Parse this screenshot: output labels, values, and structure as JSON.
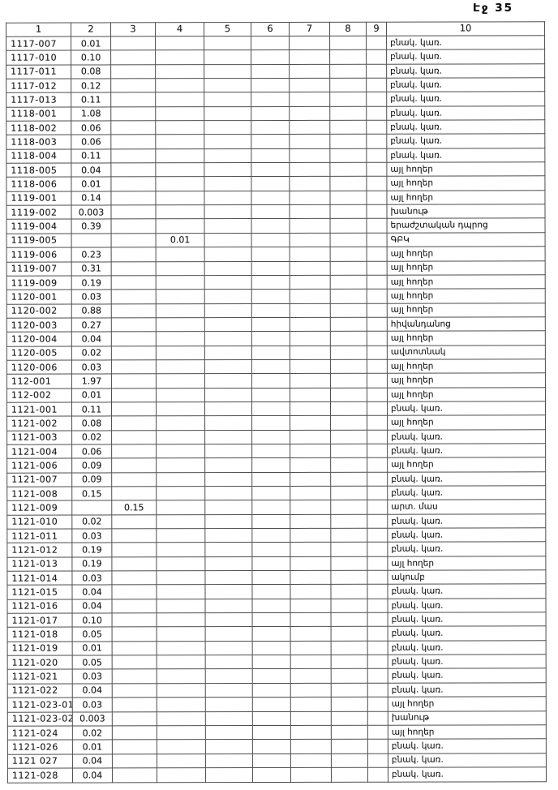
{
  "page": {
    "label": "Էջ 35"
  },
  "table": {
    "headers": [
      "1",
      "2",
      "3",
      "4",
      "5",
      "6",
      "7",
      "8",
      "9",
      "10"
    ],
    "note_legend_examples": [
      "բնակ. կառ.",
      "այլ հողեր",
      "խանութ",
      "ԳԲԿ"
    ],
    "rows": [
      {
        "code": "1117-007",
        "c2": "0.01",
        "c3": "",
        "c4": "",
        "c10": "բնակ. կառ."
      },
      {
        "code": "1117-010",
        "c2": "0.10",
        "c3": "",
        "c4": "",
        "c10": "բնակ. կառ."
      },
      {
        "code": "1117-011",
        "c2": "0.08",
        "c3": "",
        "c4": "",
        "c10": "բնակ. կառ."
      },
      {
        "code": "1117-012",
        "c2": "0.12",
        "c3": "",
        "c4": "",
        "c10": "բնակ. կառ."
      },
      {
        "code": "1117-013",
        "c2": "0.11",
        "c3": "",
        "c4": "",
        "c10": "բնակ. կառ."
      },
      {
        "code": "1118-001",
        "c2": "1.08",
        "c3": "",
        "c4": "",
        "c10": "բնակ. կառ."
      },
      {
        "code": "1118-002",
        "c2": "0.06",
        "c3": "",
        "c4": "",
        "c10": "բնակ. կառ."
      },
      {
        "code": "1118-003",
        "c2": "0.06",
        "c3": "",
        "c4": "",
        "c10": "բնակ. կառ."
      },
      {
        "code": "1118-004",
        "c2": "0.11",
        "c3": "",
        "c4": "",
        "c10": "բնակ. կառ."
      },
      {
        "code": "1118-005",
        "c2": "0.04",
        "c3": "",
        "c4": "",
        "c10": "այլ հողեր"
      },
      {
        "code": "1118-006",
        "c2": "0.01",
        "c3": "",
        "c4": "",
        "c10": "այլ հողեր"
      },
      {
        "code": "1119-001",
        "c2": "0.14",
        "c3": "",
        "c4": "",
        "c10": "այլ հողեր"
      },
      {
        "code": "1119-002",
        "c2": "0.003",
        "c3": "",
        "c4": "",
        "c10": "խանութ"
      },
      {
        "code": "1119-004",
        "c2": "0.39",
        "c3": "",
        "c4": "",
        "c10": "երաժշտական դպրոց"
      },
      {
        "code": "1119-005",
        "c2": "",
        "c3": "",
        "c4": "0.01",
        "c10": "ԳԲԿ"
      },
      {
        "code": "1119-006",
        "c2": "0.23",
        "c3": "",
        "c4": "",
        "c10": "այլ հողեր"
      },
      {
        "code": "1119-007",
        "c2": "0.31",
        "c3": "",
        "c4": "",
        "c10": "այլ հողեր"
      },
      {
        "code": "1119-009",
        "c2": "0.19",
        "c3": "",
        "c4": "",
        "c10": "այլ հողեր"
      },
      {
        "code": "1120-001",
        "c2": "0.03",
        "c3": "",
        "c4": "",
        "c10": "այլ հողեր"
      },
      {
        "code": "1120-002",
        "c2": "0.88",
        "c3": "",
        "c4": "",
        "c10": "այլ հողեր"
      },
      {
        "code": "1120-003",
        "c2": "0.27",
        "c3": "",
        "c4": "",
        "c10": "հիվանդանոց"
      },
      {
        "code": "1120-004",
        "c2": "0.04",
        "c3": "",
        "c4": "",
        "c10": "այլ հողեր"
      },
      {
        "code": "1120-005",
        "c2": "0.02",
        "c3": "",
        "c4": "",
        "c10": "ավտոտնակ"
      },
      {
        "code": "1120-006",
        "c2": "0.03",
        "c3": "",
        "c4": "",
        "c10": "այլ հողեր"
      },
      {
        "code": "112-001",
        "c2": "1.97",
        "c3": "",
        "c4": "",
        "c10": "այլ հողեր"
      },
      {
        "code": "112-002",
        "c2": "0.01",
        "c3": "",
        "c4": "",
        "c10": "այլ հողեր"
      },
      {
        "code": "1121-001",
        "c2": "0.11",
        "c3": "",
        "c4": "",
        "c10": "բնակ. կառ."
      },
      {
        "code": "1121-002",
        "c2": "0.08",
        "c3": "",
        "c4": "",
        "c10": "այլ հողեր"
      },
      {
        "code": "1121-003",
        "c2": "0.02",
        "c3": "",
        "c4": "",
        "c10": "բնակ. կառ."
      },
      {
        "code": "1121-004",
        "c2": "0.06",
        "c3": "",
        "c4": "",
        "c10": "բնակ. կառ."
      },
      {
        "code": "1121-006",
        "c2": "0.09",
        "c3": "",
        "c4": "",
        "c10": "այլ հողեր"
      },
      {
        "code": "1121-007",
        "c2": "0.09",
        "c3": "",
        "c4": "",
        "c10": "բնակ. կառ."
      },
      {
        "code": "1121-008",
        "c2": "0.15",
        "c3": "",
        "c4": "",
        "c10": "բնակ. կառ."
      },
      {
        "code": "1121-009",
        "c2": "",
        "c3": "0.15",
        "c4": "",
        "c10": "արտ. մաս"
      },
      {
        "code": "1121-010",
        "c2": "0.02",
        "c3": "",
        "c4": "",
        "c10": "բնակ. կառ."
      },
      {
        "code": "1121-011",
        "c2": "0.03",
        "c3": "",
        "c4": "",
        "c10": "բնակ. կառ."
      },
      {
        "code": "1121-012",
        "c2": "0.19",
        "c3": "",
        "c4": "",
        "c10": "բնակ. կառ."
      },
      {
        "code": "1121-013",
        "c2": "0.19",
        "c3": "",
        "c4": "",
        "c10": "այլ հողեր"
      },
      {
        "code": "1121-014",
        "c2": "0.03",
        "c3": "",
        "c4": "",
        "c10": "ակումբ"
      },
      {
        "code": "1121-015",
        "c2": "0.04",
        "c3": "",
        "c4": "",
        "c10": "բնակ. կառ."
      },
      {
        "code": "1121-016",
        "c2": "0.04",
        "c3": "",
        "c4": "",
        "c10": "բնակ. կառ."
      },
      {
        "code": "1121-017",
        "c2": "0.10",
        "c3": "",
        "c4": "",
        "c10": "բնակ. կառ."
      },
      {
        "code": "1121-018",
        "c2": "0.05",
        "c3": "",
        "c4": "",
        "c10": "բնակ. կառ."
      },
      {
        "code": "1121-019",
        "c2": "0.01",
        "c3": "",
        "c4": "",
        "c10": "բնակ. կառ."
      },
      {
        "code": "1121-020",
        "c2": "0.05",
        "c3": "",
        "c4": "",
        "c10": "բնակ. կառ."
      },
      {
        "code": "1121-021",
        "c2": "0.03",
        "c3": "",
        "c4": "",
        "c10": "բնակ. կառ."
      },
      {
        "code": "1121-022",
        "c2": "0.04",
        "c3": "",
        "c4": "",
        "c10": "բնակ. կառ."
      },
      {
        "code": "1121-023-01",
        "c2": "0.03",
        "c3": "",
        "c4": "",
        "c10": "այլ հողեր"
      },
      {
        "code": "1121-023-02",
        "c2": "0.003",
        "c3": "",
        "c4": "",
        "c10": "խանութ"
      },
      {
        "code": "1121-024",
        "c2": "0.02",
        "c3": "",
        "c4": "",
        "c10": "այլ հողեր"
      },
      {
        "code": "1121-026",
        "c2": "0.01",
        "c3": "",
        "c4": "",
        "c10": "բնակ. կառ."
      },
      {
        "code": "1121 027",
        "c2": "0.04",
        "c3": "",
        "c4": "",
        "c10": "բնակ. կառ."
      },
      {
        "code": "1121-028",
        "c2": "0.04",
        "c3": "",
        "c4": "",
        "c10": "բնակ. կառ."
      }
    ]
  }
}
